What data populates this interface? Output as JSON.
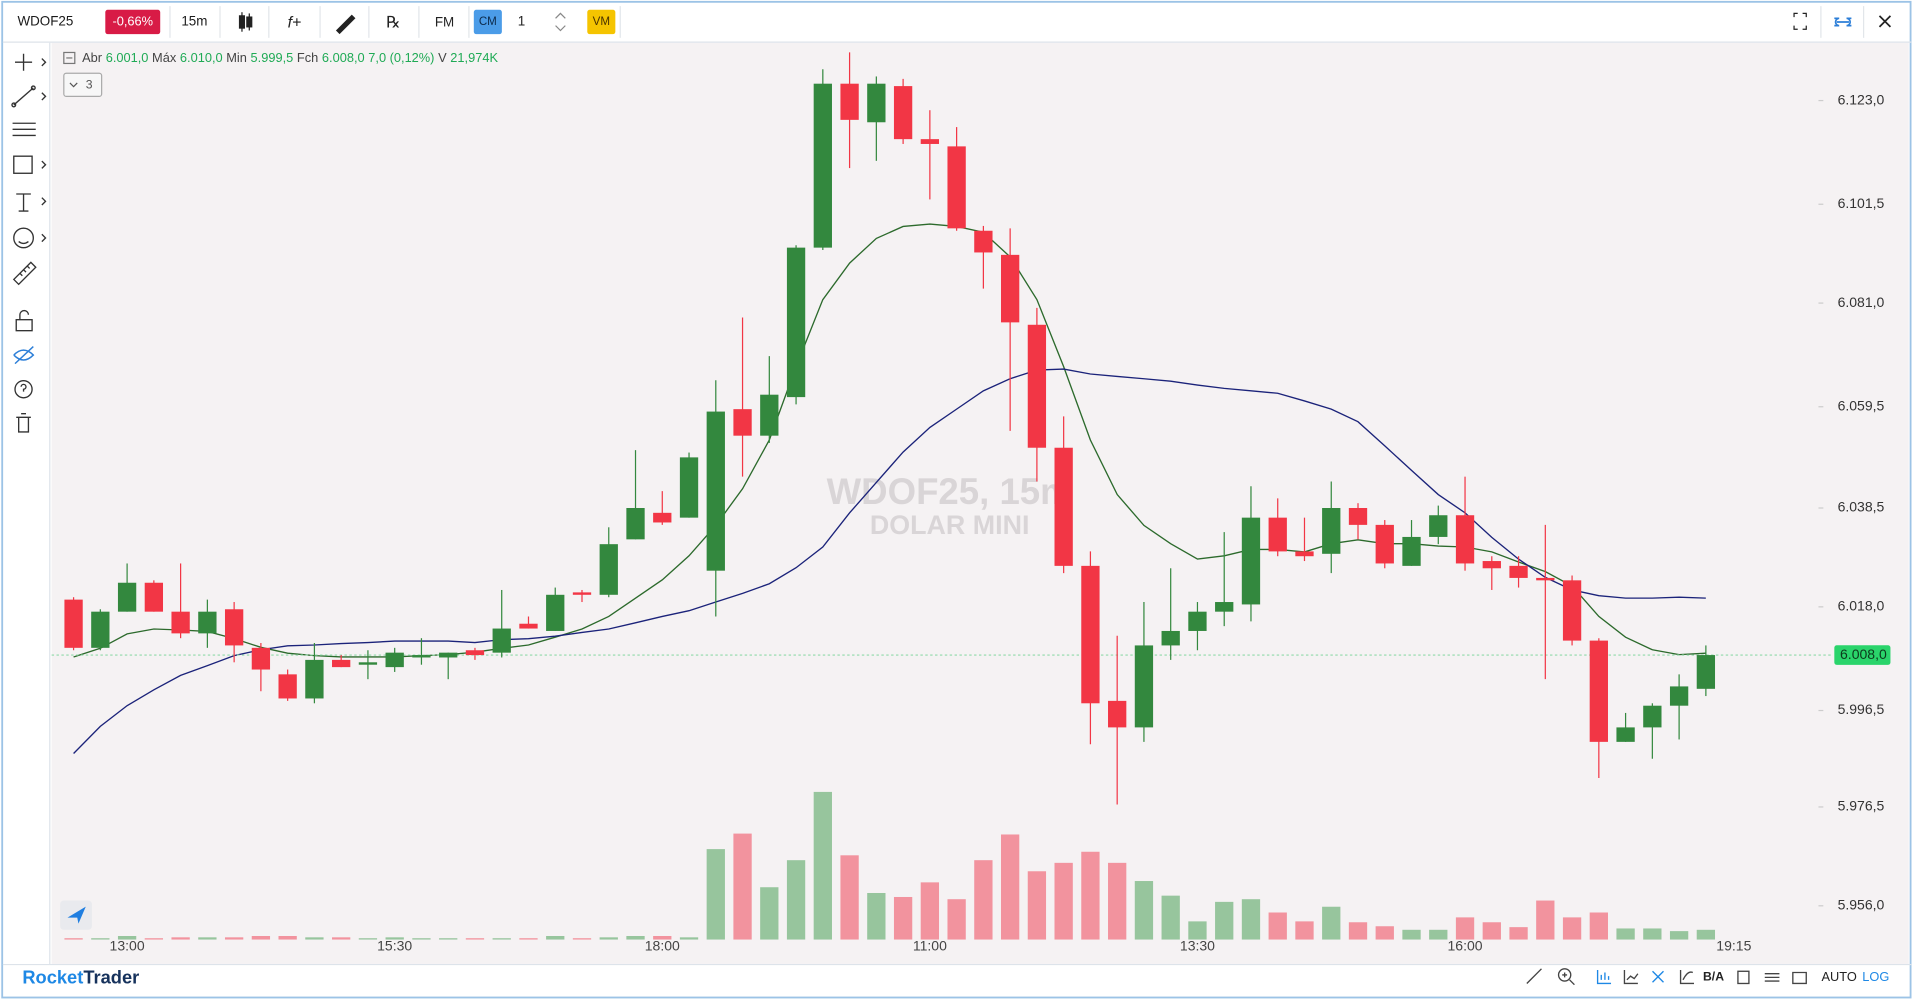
{
  "toolbar": {
    "symbol": "WDOF25",
    "change": "-0,66%",
    "interval": "15m",
    "fm": "FM",
    "cm": "CM",
    "quantity": "1",
    "vm": "VM"
  },
  "legend": {
    "open_label": "Abr",
    "open": "6.001,0",
    "high_label": "Máx",
    "high": "6.010,0",
    "low_label": "Min",
    "low": "5.999,5",
    "close_label": "Fch",
    "close": "6.008,0",
    "change": "7,0 (0,12%)",
    "volume_label": "V",
    "volume": "21,974K"
  },
  "indicator_count": "3",
  "watermark": {
    "symbol": "WDOF25, 15m",
    "name": "DOLAR MINI"
  },
  "chart_data": {
    "type": "candlestick",
    "categories": [
      null,
      null,
      "13:00",
      null,
      null,
      null,
      null,
      null,
      null,
      null,
      null,
      null,
      "15:30",
      null,
      null,
      null,
      null,
      null,
      null,
      null,
      null,
      null,
      "18:00",
      null,
      null,
      null,
      null,
      null,
      null,
      null,
      null,
      null,
      "11:00",
      null,
      null,
      null,
      null,
      null,
      null,
      null,
      null,
      null,
      "13:30",
      null,
      null,
      null,
      null,
      null,
      null,
      null,
      null,
      null,
      "16:00",
      null,
      null,
      null,
      null,
      null,
      null,
      null,
      null,
      null
    ],
    "open": [
      6019.5,
      6009.5,
      6017,
      6023,
      6017,
      6012.5,
      6017.5,
      6009.5,
      6004,
      5999,
      6007,
      6006,
      6005.5,
      6007.5,
      6007.5,
      6009,
      6008.5,
      6014.5,
      6013,
      6021,
      6020.5,
      6032,
      6037.5,
      6036.5,
      6025.5,
      6059,
      6053.5,
      6061.5,
      6092.5,
      6126.5,
      6118.5,
      6126,
      6115,
      6113.5,
      6096,
      6091,
      6076.5,
      6051,
      6026.5,
      5998.5,
      5993,
      6010,
      6013,
      6017,
      6018.5,
      6036.5,
      6029.5,
      6029,
      6038.5,
      6035,
      6026.5,
      6032.5,
      6037,
      6027.5,
      6026.5,
      6024,
      6023.5,
      6011,
      5990,
      5993,
      5997.5,
      6001
    ],
    "high": [
      6020,
      6017.5,
      6027,
      6023.5,
      6027,
      6019.5,
      6019,
      6010.5,
      6005,
      6010.5,
      6008,
      6009,
      6009.5,
      6011.5,
      6008.5,
      6009.5,
      6021.5,
      6016,
      6022,
      6021.5,
      6034.5,
      6050.5,
      6042,
      6050,
      6065,
      6078,
      6070,
      6093,
      6129.5,
      6133,
      6128,
      6127.5,
      6121,
      6117.5,
      6097,
      6096.5,
      6080,
      6057.5,
      6029.5,
      6012,
      6019,
      6026,
      6019,
      6033.5,
      6043,
      6040.5,
      6036.5,
      6044,
      6039.5,
      6036,
      6036,
      6039,
      6045,
      6028.5,
      6028.5,
      6035,
      6024.5,
      6011.5,
      5996,
      5998,
      6004,
      6010
    ],
    "low": [
      6009,
      6009,
      6017,
      6017,
      6011.5,
      6009.5,
      6006.5,
      6000.5,
      5998.5,
      5998,
      6005.5,
      6003,
      6004.5,
      6006,
      6003,
      6007,
      6007.5,
      6013.5,
      6013,
      6019,
      6020,
      6032,
      6035,
      6036.5,
      6016,
      6045,
      6052,
      6060,
      6092,
      6109,
      6110.5,
      6114,
      6102.5,
      6096,
      6084,
      6054.5,
      6044,
      6025,
      5989.5,
      5977,
      5990,
      6007,
      6009,
      6014,
      6015,
      6028.5,
      6027.5,
      6025,
      6032,
      6026,
      6026.5,
      6031,
      6025.5,
      6021.5,
      6022,
      6003,
      6010,
      5982.5,
      5990,
      5986.5,
      5990.5,
      5999.5
    ],
    "close": [
      6009.5,
      6017,
      6023,
      6017,
      6012.5,
      6017,
      6010,
      6005,
      5999,
      6007,
      6005.5,
      6006.5,
      6008.5,
      6008,
      6008.5,
      6008,
      6013.5,
      6013.5,
      6020.5,
      6020.5,
      6031,
      6038.5,
      6035.5,
      6049,
      6058.5,
      6053.5,
      6062,
      6092.5,
      6126.5,
      6119,
      6126.5,
      6115,
      6114,
      6096.5,
      6091.5,
      6077,
      6051,
      6026.5,
      5998,
      5993,
      6010,
      6013,
      6017,
      6019,
      6036.5,
      6029.5,
      6028.5,
      6038.5,
      6035,
      6027,
      6032.5,
      6037,
      6027,
      6026,
      6024,
      6023.5,
      6011,
      5990,
      5993,
      5997.5,
      6001.5,
      6008
    ],
    "up_color": "#33883e",
    "down_color": "#f23645",
    "volume": [
      3,
      3,
      8,
      3,
      5,
      5,
      5,
      8,
      8,
      5,
      5,
      3,
      5,
      3,
      3,
      3,
      3,
      3,
      8,
      3,
      5,
      8,
      8,
      5,
      204,
      239,
      118,
      179,
      333,
      190,
      105,
      96,
      129,
      91,
      179,
      237,
      154,
      173,
      198,
      173,
      132,
      99,
      41,
      85,
      91,
      61,
      41,
      74,
      39,
      30,
      22,
      22,
      50,
      39,
      28,
      88,
      50,
      61,
      25,
      25,
      19,
      21.974
    ],
    "volume_up_color": "#97c59d",
    "volume_down_color": "#f2939e",
    "moving_averages": [
      {
        "color": "#2c6a2c",
        "values": [
          6007.6,
          6009.4,
          6012.4,
          6013.4,
          6013.2,
          6012.9,
          6011.4,
          6009.6,
          6008.4,
          6007.9,
          6007.6,
          6007.6,
          6007.6,
          6007.9,
          6008.1,
          6008.6,
          6009.4,
          6010.1,
          6011.7,
          6013.4,
          6016,
          6019.8,
          6023.6,
          6028.6,
          6034.9,
          6042.5,
          6052.6,
          6067.8,
          6081.7,
          6089.3,
          6094.4,
          6096.9,
          6097.4,
          6096.9,
          6095.7,
          6090.6,
          6081.7,
          6067.8,
          6052.6,
          6041.3,
          6034.9,
          6031.1,
          6027.9,
          6028.6,
          6029.9,
          6029.9,
          6029.4,
          6031.1,
          6031.9,
          6031.1,
          6031.1,
          6030.6,
          6030.4,
          6029.4,
          6027.3,
          6025.3,
          6022.3,
          6016,
          6011.7,
          6009.1,
          6008.1,
          6008.4
        ]
      },
      {
        "color": "#1b237a",
        "values": [
          5987.6,
          5993.2,
          5997.5,
          6000.8,
          6003.8,
          6005.8,
          6007.9,
          6009.1,
          6009.9,
          6010.1,
          6010.4,
          6010.6,
          6010.9,
          6010.9,
          6010.9,
          6010.6,
          6011.2,
          6011.4,
          6011.9,
          6012.7,
          6013.4,
          6014.7,
          6016,
          6017.2,
          6019,
          6020.8,
          6022.8,
          6026.1,
          6030.4,
          6037.5,
          6043.8,
          6050.1,
          6055.2,
          6059,
          6062.8,
          6065.3,
          6067.1,
          6067.3,
          6066.3,
          6065.8,
          6065.3,
          6064.8,
          6064,
          6063.3,
          6062.8,
          6062.3,
          6060.7,
          6059,
          6056.4,
          6051.4,
          6046.3,
          6041.3,
          6037.5,
          6032.4,
          6027.9,
          6024.1,
          6021.5,
          6020.3,
          6019.8,
          6019.8,
          6020,
          6019.8
        ]
      }
    ],
    "ylim": [
      5949,
      6135
    ],
    "yticks": [
      {
        "value": 5956,
        "label": "5.956,0"
      },
      {
        "value": 5976.5,
        "label": "5.976,5"
      },
      {
        "value": 5996.5,
        "label": "5.996,5"
      },
      {
        "value": 6018,
        "label": "6.018,0"
      },
      {
        "value": 6038.5,
        "label": "6.038,5"
      },
      {
        "value": 6059.5,
        "label": "6.059,5"
      },
      {
        "value": 6081,
        "label": "6.081,0"
      },
      {
        "value": 6101.5,
        "label": "6.101,5"
      },
      {
        "value": 6123,
        "label": "6.123,0"
      }
    ],
    "last_price": {
      "value": 6008,
      "label": "6.008,0"
    },
    "last_time_label": "19:15"
  },
  "footer": {
    "brand_first": "Rocket",
    "brand_second": "Trader",
    "ba": "B/A",
    "auto": "AUTO",
    "log": "LOG"
  }
}
